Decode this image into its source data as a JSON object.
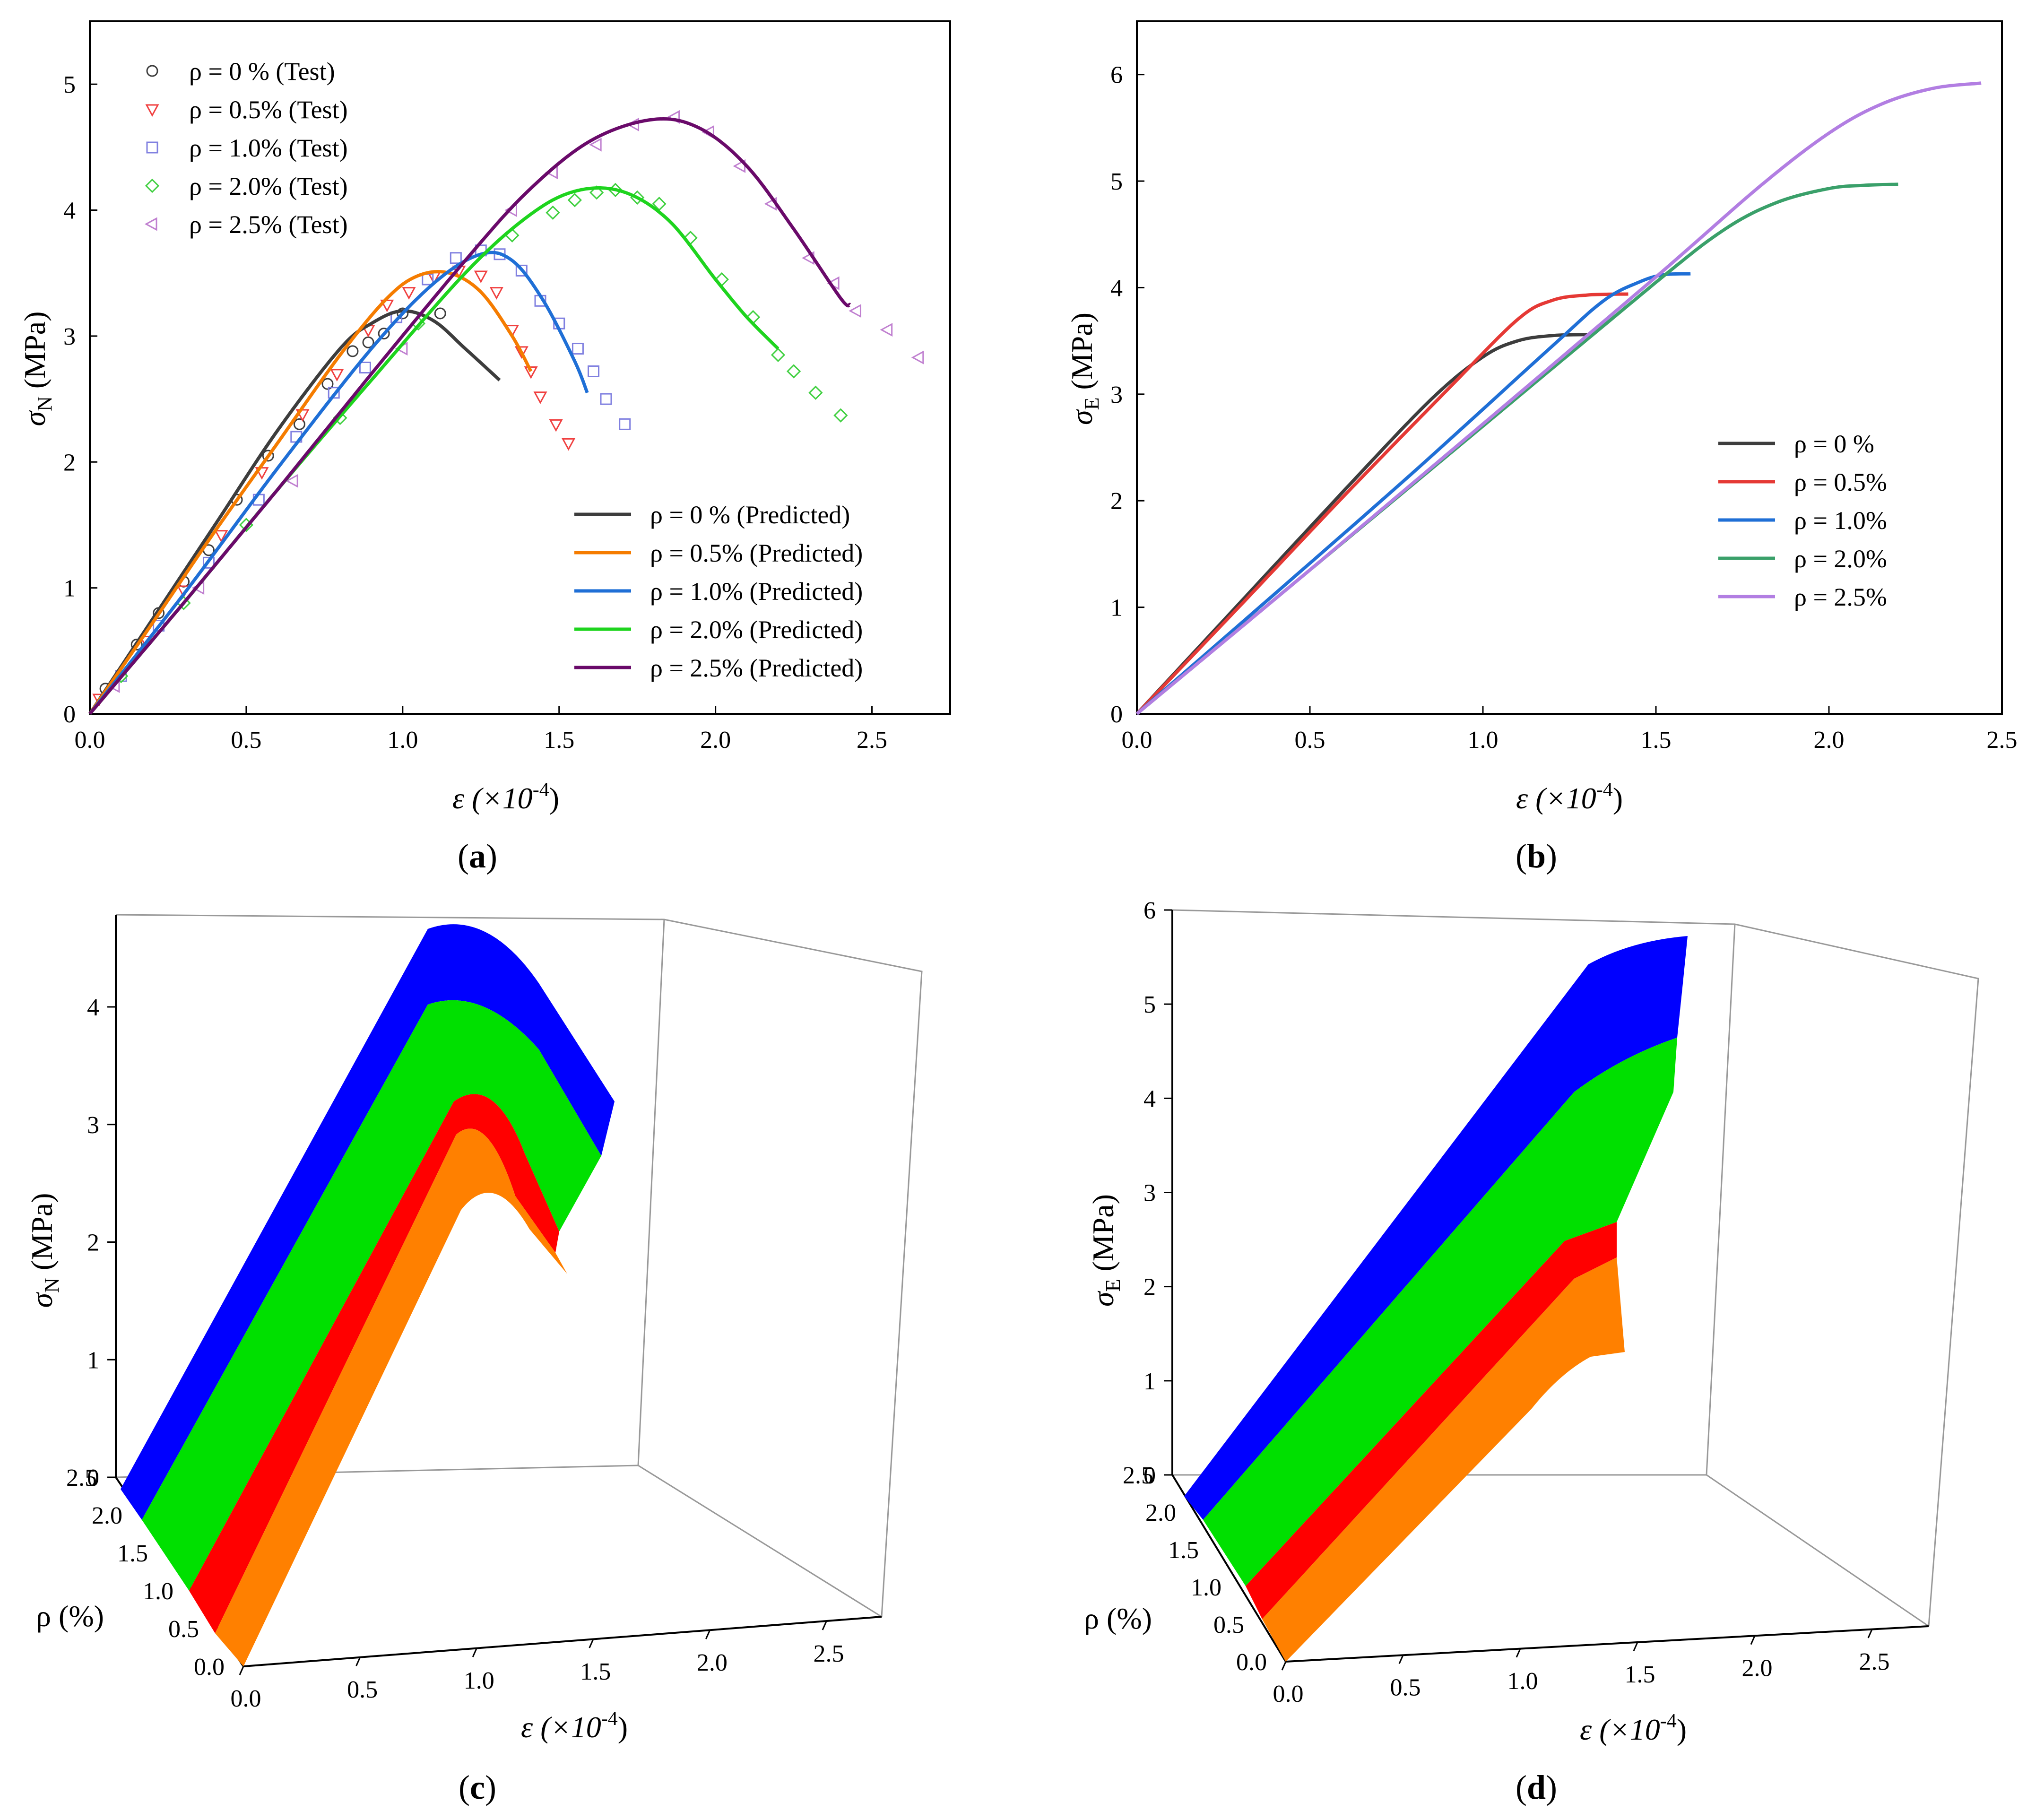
{
  "chart_data": [
    {
      "panel": "a",
      "type": "line",
      "caption": "a",
      "xlabel": "ε (×10⁻⁴)",
      "xlabel_parts": [
        "ε (×10",
        "-4",
        ")"
      ],
      "ylabel": "σN (MPa)",
      "ylabel_parts": [
        "σ",
        "N",
        " (MPa)"
      ],
      "xlim": [
        0.0,
        2.75
      ],
      "ylim": [
        0.0,
        5.5
      ],
      "xticks": [
        "0.0",
        "0.5",
        "1.0",
        "1.5",
        "2.0",
        "2.5"
      ],
      "yticks": [
        "0",
        "1",
        "2",
        "3",
        "4",
        "5"
      ],
      "test_legend": [
        "ρ =  0  % (Test)",
        "ρ = 0.5% (Test)",
        "ρ = 1.0% (Test)",
        "ρ = 2.0% (Test)",
        "ρ = 2.5% (Test)"
      ],
      "test_legend_location": "top-left",
      "predicted_legend_location": "bottom-right",
      "series": [
        {
          "name": "ρ =  0  % (Predicted)",
          "color": "#3d3d3d",
          "marker": "circle",
          "marker_color": "#3d3d3d",
          "x": [
            0.0,
            0.2,
            0.4,
            0.6,
            0.8,
            0.9,
            1.0,
            1.1,
            1.2,
            1.31
          ],
          "y": [
            0.0,
            0.75,
            1.5,
            2.25,
            2.9,
            3.1,
            3.2,
            3.12,
            2.9,
            2.65
          ],
          "test_x": [
            0.05,
            0.15,
            0.22,
            0.3,
            0.38,
            0.47,
            0.57,
            0.67,
            0.76,
            0.84,
            0.89,
            0.94,
            1.0,
            1.12
          ],
          "test_y": [
            0.2,
            0.55,
            0.8,
            1.05,
            1.3,
            1.7,
            2.05,
            2.3,
            2.62,
            2.88,
            2.95,
            3.02,
            3.18,
            3.18
          ]
        },
        {
          "name": "ρ = 0.5% (Predicted)",
          "color": "#f57c00",
          "marker": "triangle-down",
          "marker_color": "#f04040",
          "x": [
            0.0,
            0.2,
            0.4,
            0.6,
            0.8,
            0.95,
            1.05,
            1.15,
            1.25,
            1.35,
            1.41
          ],
          "y": [
            0.0,
            0.72,
            1.45,
            2.15,
            2.85,
            3.3,
            3.48,
            3.5,
            3.35,
            3.0,
            2.72
          ],
          "test_x": [
            0.03,
            0.18,
            0.3,
            0.42,
            0.55,
            0.68,
            0.79,
            0.89,
            0.95,
            1.02,
            1.1,
            1.18,
            1.25,
            1.3,
            1.35,
            1.38,
            1.41,
            1.44,
            1.49,
            1.53
          ],
          "test_y": [
            0.12,
            0.58,
            0.98,
            1.42,
            1.92,
            2.38,
            2.7,
            3.05,
            3.25,
            3.35,
            3.47,
            3.52,
            3.48,
            3.35,
            3.05,
            2.88,
            2.72,
            2.52,
            2.3,
            2.15
          ]
        },
        {
          "name": "ρ = 1.0% (Predicted)",
          "color": "#1f6fd6",
          "marker": "square",
          "marker_color": "#8080e0",
          "x": [
            0.0,
            0.3,
            0.6,
            0.9,
            1.1,
            1.25,
            1.35,
            1.45,
            1.55,
            1.59
          ],
          "y": [
            0.0,
            0.95,
            1.95,
            2.9,
            3.42,
            3.65,
            3.6,
            3.28,
            2.8,
            2.55
          ],
          "test_x": [
            0.1,
            0.22,
            0.38,
            0.54,
            0.66,
            0.78,
            0.88,
            0.98,
            1.08,
            1.17,
            1.25,
            1.31,
            1.38,
            1.44,
            1.5,
            1.56,
            1.61,
            1.65,
            1.71
          ],
          "test_y": [
            0.3,
            0.7,
            1.2,
            1.7,
            2.2,
            2.55,
            2.75,
            3.15,
            3.45,
            3.62,
            3.68,
            3.65,
            3.52,
            3.28,
            3.1,
            2.9,
            2.72,
            2.5,
            2.3
          ]
        },
        {
          "name": "ρ = 2.0% (Predicted)",
          "color": "#1ed41e",
          "marker": "diamond",
          "marker_color": "#40d040",
          "x": [
            0.0,
            0.3,
            0.6,
            0.9,
            1.2,
            1.4,
            1.55,
            1.7,
            1.85,
            2.0,
            2.1,
            2.2
          ],
          "y": [
            0.0,
            0.88,
            1.78,
            2.65,
            3.5,
            3.95,
            4.15,
            4.15,
            3.92,
            3.45,
            3.15,
            2.9
          ],
          "test_x": [
            0.1,
            0.3,
            0.5,
            0.8,
            1.05,
            1.35,
            1.48,
            1.55,
            1.62,
            1.68,
            1.75,
            1.82,
            1.92,
            2.02,
            2.12,
            2.2,
            2.25,
            2.32,
            2.4
          ],
          "test_y": [
            0.3,
            0.88,
            1.5,
            2.35,
            3.1,
            3.8,
            3.98,
            4.08,
            4.14,
            4.16,
            4.1,
            4.05,
            3.78,
            3.45,
            3.15,
            2.85,
            2.72,
            2.55,
            2.37
          ]
        },
        {
          "name": "ρ = 2.5% (Predicted)",
          "color": "#6a0a6a",
          "marker": "triangle-left",
          "marker_color": "#c080d0",
          "x": [
            0.0,
            0.3,
            0.6,
            0.9,
            1.2,
            1.4,
            1.6,
            1.8,
            1.95,
            2.1,
            2.25,
            2.4,
            2.43
          ],
          "y": [
            0.0,
            0.88,
            1.78,
            2.7,
            3.6,
            4.15,
            4.55,
            4.72,
            4.65,
            4.35,
            3.85,
            3.3,
            3.25
          ],
          "test_x": [
            0.08,
            0.35,
            0.65,
            1.0,
            1.35,
            1.48,
            1.62,
            1.74,
            1.87,
            1.98,
            2.08,
            2.18,
            2.3,
            2.38,
            2.45,
            2.55,
            2.65
          ],
          "test_y": [
            0.22,
            1.0,
            1.85,
            2.9,
            4.0,
            4.3,
            4.52,
            4.68,
            4.74,
            4.62,
            4.35,
            4.05,
            3.62,
            3.42,
            3.2,
            3.05,
            2.83
          ]
        }
      ]
    },
    {
      "panel": "b",
      "type": "line",
      "caption": "b",
      "xlabel": "ε (×10⁻⁴)",
      "xlabel_parts": [
        "ε (×10",
        "-4",
        ")"
      ],
      "ylabel": "σE (MPa)",
      "ylabel_parts": [
        "σ",
        "E",
        " (MPa)"
      ],
      "xlim": [
        0.0,
        2.5
      ],
      "ylim": [
        0.0,
        6.5
      ],
      "xticks": [
        "0.0",
        "0.5",
        "1.0",
        "1.5",
        "2.0",
        "2.5"
      ],
      "yticks": [
        "0",
        "1",
        "2",
        "3",
        "4",
        "5",
        "6"
      ],
      "legend_location": "right",
      "series": [
        {
          "name": "ρ = 0   %",
          "color": "#3d3d3d",
          "x": [
            0.0,
            0.3,
            0.6,
            0.85,
            1.0,
            1.1,
            1.2,
            1.31
          ],
          "y": [
            0.0,
            1.05,
            2.1,
            2.95,
            3.35,
            3.5,
            3.55,
            3.56
          ]
        },
        {
          "name": "ρ = 0.5%",
          "color": "#e53935",
          "x": [
            0.0,
            0.3,
            0.6,
            0.9,
            1.1,
            1.2,
            1.3,
            1.42
          ],
          "y": [
            0.0,
            1.02,
            2.05,
            3.05,
            3.7,
            3.88,
            3.93,
            3.94
          ]
        },
        {
          "name": "ρ = 1.0%",
          "color": "#1f6fd6",
          "x": [
            0.0,
            0.4,
            0.8,
            1.2,
            1.35,
            1.45,
            1.52,
            1.6
          ],
          "y": [
            0.0,
            1.13,
            2.27,
            3.45,
            3.88,
            4.05,
            4.12,
            4.13
          ]
        },
        {
          "name": "ρ = 2.0%",
          "color": "#3aa06a",
          "x": [
            0.0,
            0.5,
            1.0,
            1.5,
            1.7,
            1.85,
            2.0,
            2.1,
            2.2
          ],
          "y": [
            0.0,
            1.35,
            2.7,
            4.05,
            4.55,
            4.8,
            4.93,
            4.96,
            4.97
          ]
        },
        {
          "name": "ρ = 2.5%",
          "color": "#b27ee2",
          "x": [
            0.0,
            0.5,
            1.0,
            1.5,
            1.8,
            2.0,
            2.15,
            2.3,
            2.44
          ],
          "y": [
            0.0,
            1.35,
            2.72,
            4.1,
            4.95,
            5.45,
            5.72,
            5.87,
            5.92
          ]
        }
      ]
    },
    {
      "panel": "c",
      "type": "surface",
      "caption": "c",
      "zlabel": "σN (MPa)",
      "zlabel_parts": [
        "σ",
        "N",
        " (MPa)"
      ],
      "xlabel": "ε (×10⁻⁴)",
      "xlabel_parts": [
        "ε (×10",
        "-4",
        ")"
      ],
      "ylabel": "ρ  (%)",
      "zticks": [
        "0",
        "1",
        "2",
        "3",
        "4"
      ],
      "xticks": [
        "0.0",
        "0.5",
        "1.0",
        "1.5",
        "2.0",
        "2.5"
      ],
      "yticks": [
        "0.0",
        "0.5",
        "1.0",
        "1.5",
        "2.0",
        "2.5"
      ],
      "bands": [
        {
          "name": "ρ 0.0–0.5%",
          "color": "#ff8000"
        },
        {
          "name": "ρ 0.5–1.0%",
          "color": "#ff0000"
        },
        {
          "name": "ρ 1.0–2.0%",
          "color": "#00e000"
        },
        {
          "name": "ρ 2.0–2.5%",
          "color": "#0000ff"
        }
      ]
    },
    {
      "panel": "d",
      "type": "surface",
      "caption": "d",
      "zlabel": "σE (MPa)",
      "zlabel_parts": [
        "σ",
        "E",
        " (MPa)"
      ],
      "xlabel": "ε (×10⁻⁴)",
      "xlabel_parts": [
        "ε (×10",
        "-4",
        ")"
      ],
      "ylabel": "ρ (%)",
      "zticks": [
        "0",
        "1",
        "2",
        "3",
        "4",
        "5",
        "6"
      ],
      "xticks": [
        "0.0",
        "0.5",
        "1.0",
        "1.5",
        "2.0",
        "2.5"
      ],
      "yticks": [
        "0.0",
        "0.5",
        "1.0",
        "1.5",
        "2.0",
        "2.5"
      ],
      "bands": [
        {
          "name": "ρ 0.0–0.5%",
          "color": "#ff8000"
        },
        {
          "name": "ρ 0.5–1.0%",
          "color": "#ff0000"
        },
        {
          "name": "ρ 1.0–2.0%",
          "color": "#00e000"
        },
        {
          "name": "ρ 2.0–2.5%",
          "color": "#0000ff"
        }
      ]
    }
  ]
}
